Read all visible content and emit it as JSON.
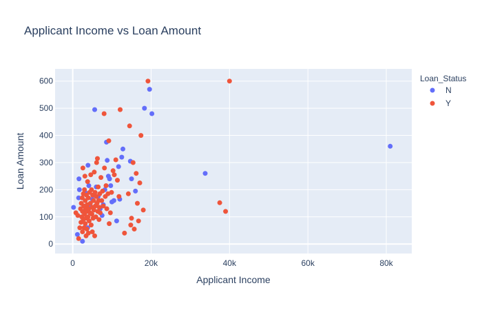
{
  "chart_data": {
    "type": "scatter",
    "title": "Applicant Income vs Loan Amount",
    "xlabel": "Applicant Income",
    "ylabel": "Loan Amount",
    "xlim": [
      -4500,
      86500
    ],
    "ylim": [
      -35,
      645
    ],
    "x_ticks": [
      0,
      20000,
      40000,
      60000,
      80000
    ],
    "x_tick_labels": [
      "0",
      "20k",
      "40k",
      "60k",
      "80k"
    ],
    "y_ticks": [
      0,
      100,
      200,
      300,
      400,
      500,
      600
    ],
    "y_tick_labels": [
      "0",
      "100",
      "200",
      "300",
      "400",
      "500",
      "600"
    ],
    "grid": true,
    "legend_title": "Loan_Status",
    "legend_position": "right",
    "series": [
      {
        "name": "N",
        "color": "#636efa",
        "points": [
          [
            200,
            135
          ],
          [
            1500,
            170
          ],
          [
            1600,
            240
          ],
          [
            1700,
            200
          ],
          [
            2500,
            10
          ],
          [
            1200,
            35
          ],
          [
            2800,
            120
          ],
          [
            3200,
            190
          ],
          [
            3800,
            60
          ],
          [
            3900,
            290
          ],
          [
            4100,
            215
          ],
          [
            4500,
            140
          ],
          [
            5000,
            165
          ],
          [
            5600,
            495
          ],
          [
            6000,
            210
          ],
          [
            6500,
            175
          ],
          [
            7000,
            130
          ],
          [
            7500,
            105
          ],
          [
            7800,
            145
          ],
          [
            8200,
            200
          ],
          [
            8600,
            375
          ],
          [
            8800,
            308
          ],
          [
            9100,
            250
          ],
          [
            9400,
            240
          ],
          [
            9700,
            215
          ],
          [
            10000,
            155
          ],
          [
            10500,
            160
          ],
          [
            11200,
            85
          ],
          [
            11700,
            285
          ],
          [
            12000,
            165
          ],
          [
            12500,
            320
          ],
          [
            12800,
            350
          ],
          [
            14700,
            305
          ],
          [
            15000,
            240
          ],
          [
            16000,
            195
          ],
          [
            18300,
            500
          ],
          [
            19600,
            570
          ],
          [
            20200,
            480
          ],
          [
            33800,
            260
          ],
          [
            81000,
            360
          ]
        ]
      },
      {
        "name": "Y",
        "color": "#ef553b",
        "points": [
          [
            800,
            115
          ],
          [
            1300,
            105
          ],
          [
            1500,
            20
          ],
          [
            1800,
            60
          ],
          [
            2000,
            130
          ],
          [
            2100,
            80
          ],
          [
            2200,
            150
          ],
          [
            2300,
            100
          ],
          [
            2400,
            170
          ],
          [
            2500,
            45
          ],
          [
            2500,
            120
          ],
          [
            2600,
            280
          ],
          [
            2700,
            90
          ],
          [
            2700,
            185
          ],
          [
            2800,
            140
          ],
          [
            2900,
            60
          ],
          [
            3000,
            110
          ],
          [
            3000,
            200
          ],
          [
            3100,
            250
          ],
          [
            3200,
            75
          ],
          [
            3200,
            160
          ],
          [
            3300,
            130
          ],
          [
            3400,
            30
          ],
          [
            3400,
            95
          ],
          [
            3500,
            180
          ],
          [
            3600,
            120
          ],
          [
            3600,
            55
          ],
          [
            3700,
            145
          ],
          [
            3800,
            230
          ],
          [
            3900,
            100
          ],
          [
            4000,
            170
          ],
          [
            4000,
            40
          ],
          [
            4100,
            130
          ],
          [
            4200,
            85
          ],
          [
            4300,
            190
          ],
          [
            4400,
            115
          ],
          [
            4500,
            150
          ],
          [
            4600,
            255
          ],
          [
            4700,
            70
          ],
          [
            4800,
            200
          ],
          [
            4900,
            110
          ],
          [
            5000,
            135
          ],
          [
            5000,
            45
          ],
          [
            5100,
            180
          ],
          [
            5200,
            95
          ],
          [
            5300,
            160
          ],
          [
            5400,
            125
          ],
          [
            5500,
            265
          ],
          [
            5600,
            30
          ],
          [
            5700,
            190
          ],
          [
            5800,
            140
          ],
          [
            5900,
            100
          ],
          [
            6000,
            175
          ],
          [
            6100,
            300
          ],
          [
            6200,
            150
          ],
          [
            6300,
            315
          ],
          [
            6400,
            120
          ],
          [
            6500,
            210
          ],
          [
            6600,
            160
          ],
          [
            6700,
            90
          ],
          [
            6800,
            135
          ],
          [
            6900,
            185
          ],
          [
            7000,
            115
          ],
          [
            7200,
            245
          ],
          [
            7400,
            160
          ],
          [
            7600,
            195
          ],
          [
            7800,
            140
          ],
          [
            8000,
            480
          ],
          [
            8100,
            280
          ],
          [
            8300,
            175
          ],
          [
            8500,
            215
          ],
          [
            8700,
            130
          ],
          [
            9000,
            185
          ],
          [
            9200,
            380
          ],
          [
            9300,
            75
          ],
          [
            9600,
            115
          ],
          [
            9900,
            190
          ],
          [
            10300,
            270
          ],
          [
            10600,
            255
          ],
          [
            11000,
            310
          ],
          [
            11400,
            235
          ],
          [
            11800,
            175
          ],
          [
            12100,
            495
          ],
          [
            13200,
            40
          ],
          [
            14200,
            185
          ],
          [
            14500,
            435
          ],
          [
            14800,
            70
          ],
          [
            15000,
            95
          ],
          [
            15400,
            300
          ],
          [
            15700,
            55
          ],
          [
            16200,
            260
          ],
          [
            16500,
            150
          ],
          [
            16800,
            85
          ],
          [
            17100,
            225
          ],
          [
            17400,
            400
          ],
          [
            18000,
            125
          ],
          [
            19200,
            600
          ],
          [
            37500,
            152
          ],
          [
            39000,
            120
          ],
          [
            40000,
            600
          ]
        ]
      }
    ]
  }
}
